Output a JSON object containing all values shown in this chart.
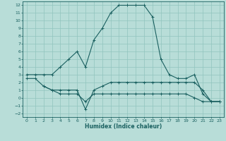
{
  "xlabel": "Humidex (Indice chaleur)",
  "bg_color": "#b8ddd8",
  "grid_color": "#90c4be",
  "line_color": "#1a6060",
  "xlim": [
    -0.5,
    23.5
  ],
  "ylim": [
    -2.5,
    12.5
  ],
  "xticks": [
    0,
    1,
    2,
    3,
    4,
    5,
    6,
    7,
    8,
    9,
    10,
    11,
    12,
    13,
    14,
    15,
    16,
    17,
    18,
    19,
    20,
    21,
    22,
    23
  ],
  "yticks": [
    -2,
    -1,
    0,
    1,
    2,
    3,
    4,
    5,
    6,
    7,
    8,
    9,
    10,
    11,
    12
  ],
  "line1_x": [
    0,
    1,
    2,
    3,
    4,
    5,
    6,
    7,
    8,
    9,
    10,
    11,
    12,
    13,
    14,
    15,
    16,
    17,
    18,
    19,
    20,
    21,
    22,
    23
  ],
  "line1_y": [
    3,
    3,
    3,
    3,
    4,
    5,
    6,
    4,
    7.5,
    9,
    11,
    12,
    12,
    12,
    12,
    10.5,
    5,
    3,
    2.5,
    2.5,
    3,
    0.5,
    -0.5,
    -0.5
  ],
  "line2_x": [
    0,
    1,
    2,
    3,
    4,
    5,
    6,
    7,
    8,
    9,
    10,
    11,
    12,
    13,
    14,
    15,
    16,
    17,
    18,
    19,
    20,
    21,
    22,
    23
  ],
  "line2_y": [
    2.5,
    2.5,
    1.5,
    1,
    1,
    1,
    1,
    -1.5,
    1,
    1.5,
    2,
    2,
    2,
    2,
    2,
    2,
    2,
    2,
    2,
    2,
    2,
    1,
    -0.5,
    -0.5
  ],
  "line3_x": [
    2,
    3,
    4,
    5,
    6,
    7,
    8,
    9,
    10,
    11,
    12,
    13,
    14,
    15,
    16,
    17,
    18,
    19,
    20,
    21,
    22,
    23
  ],
  "line3_y": [
    1.5,
    1,
    0.5,
    0.5,
    0.5,
    -0.5,
    0.5,
    0.5,
    0.5,
    0.5,
    0.5,
    0.5,
    0.5,
    0.5,
    0.5,
    0.5,
    0.5,
    0.5,
    0,
    -0.5,
    -0.5,
    -0.5
  ]
}
